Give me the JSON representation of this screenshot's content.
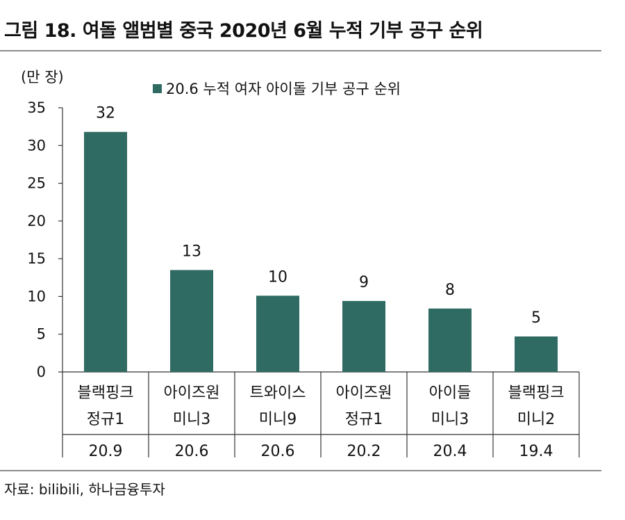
{
  "title": "그림 18. 여돌 앨범별 중국 2020년 6월 누적 기부 공구 순위",
  "source": "자료: bilibili, 하나금융투자",
  "chart_data": {
    "type": "bar",
    "unit_label": "(만 장)",
    "legend": "20.6 누적 여자 아이돌 기부 공구 순위",
    "series_color": "#2f6b62",
    "ylim": [
      0,
      35
    ],
    "yticks": [
      "0",
      "5",
      "10",
      "15",
      "20",
      "25",
      "30",
      "35"
    ],
    "categories": [
      {
        "line1": "블랙핑크",
        "line2": "정규1",
        "date": "20.9"
      },
      {
        "line1": "아이즈원",
        "line2": "미니3",
        "date": "20.6"
      },
      {
        "line1": "트와이스",
        "line2": "미니9",
        "date": "20.6"
      },
      {
        "line1": "아이즈원",
        "line2": "정규1",
        "date": "20.2"
      },
      {
        "line1": "아이들",
        "line2": "미니3",
        "date": "20.4"
      },
      {
        "line1": "블랙핑크",
        "line2": "미니2",
        "date": "19.4"
      }
    ],
    "values": [
      31.8,
      13.5,
      10.1,
      9.4,
      8.4,
      4.7
    ],
    "data_labels": [
      "32",
      "13",
      "10",
      "9",
      "8",
      "5"
    ]
  }
}
